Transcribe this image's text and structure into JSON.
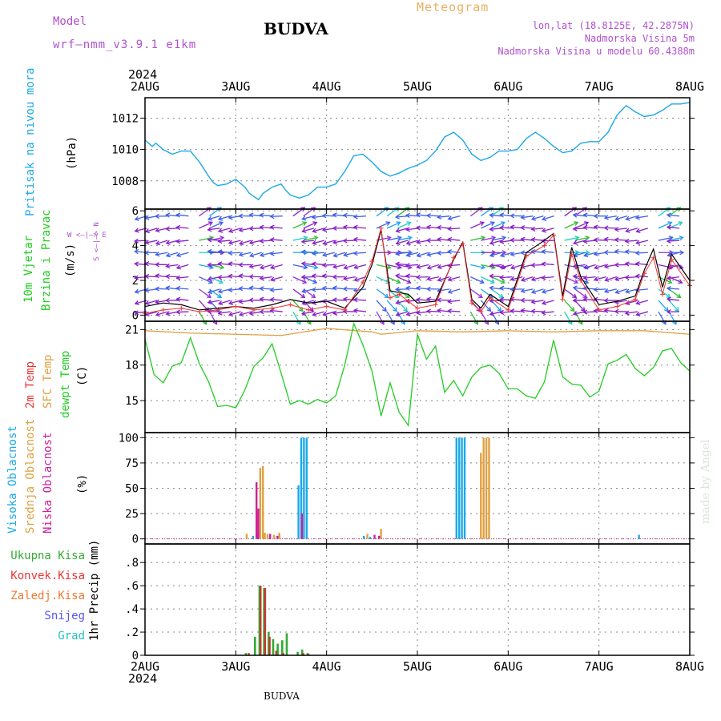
{
  "header": {
    "model_label": "Model",
    "model_name": "wrf—nmm_v3.9.1  e1km",
    "station_title": "BUDVA",
    "meteogram_label": "Meteogram",
    "lonlat": "lon,lat (18.8125E, 42.2875N)",
    "altitude": "Nadmorska Visina 5m",
    "model_altitude": "Nadmorska Visina u modelu 60.4388m"
  },
  "footer": {
    "station": "BUDVA",
    "credit": "made by Angel"
  },
  "time_axis": {
    "year": "2024",
    "ticks": [
      "2AUG",
      "3AUG",
      "4AUG",
      "5AUG",
      "6AUG",
      "7AUG",
      "8AUG"
    ],
    "range_days": [
      0,
      6
    ]
  },
  "panel_labels": {
    "pressure": {
      "name": "Pritisak na nivou mora",
      "unit": "(hPa)"
    },
    "wind": {
      "name1": "10m Vjetar",
      "name2": "Brzina i Pravac",
      "unit": "(m/s)",
      "compass": "W <—|—> E",
      "compass_v": "S <—|—> N"
    },
    "temp": {
      "t2m": "2m Temp",
      "sfc": "SFC Temp",
      "dew": "dewpt Temp",
      "unit": "(C)"
    },
    "cloud": {
      "high": "Visoka Oblacnost",
      "mid": "Srednja Oblacnost",
      "low": "Niska Oblacnost",
      "unit": "(%)"
    },
    "precip": {
      "total": "Ukupna Kisa",
      "conv": "Konvek.Kisa",
      "frz": "Zaledj.Kisa",
      "snow": "Snijeg",
      "hail": "Grad",
      "unit": "1hr Precip (mm)"
    }
  },
  "colors": {
    "pressure": "#1ba8e8",
    "wind_speed": "#000000",
    "wind_gust": "#ee3333",
    "sfc_temp": "#e0a040",
    "dew_temp": "#22cc22",
    "t2m": "#ee3333",
    "high_cloud": "#1ba8e8",
    "mid_cloud": "#e0a040",
    "low_cloud": "#d0209a",
    "precip_total": "#33aa33",
    "precip_conv": "#cc3333",
    "grid": "#888888"
  },
  "chart_data": [
    {
      "type": "line",
      "name": "pressure",
      "ylim": [
        1006.2,
        1013.3
      ],
      "yticks": [
        1008,
        1010,
        1012
      ],
      "x": [
        0,
        0.08,
        0.12,
        0.2,
        0.3,
        0.4,
        0.5,
        0.6,
        0.7,
        0.75,
        0.8,
        0.9,
        1.0,
        1.1,
        1.15,
        1.25,
        1.3,
        1.4,
        1.5,
        1.55,
        1.6,
        1.7,
        1.8,
        1.9,
        2.0,
        2.1,
        2.2,
        2.3,
        2.4,
        2.5,
        2.6,
        2.7,
        2.8,
        2.9,
        3.0,
        3.1,
        3.2,
        3.3,
        3.4,
        3.5,
        3.6,
        3.7,
        3.8,
        3.9,
        4.0,
        4.1,
        4.2,
        4.3,
        4.4,
        4.5,
        4.6,
        4.7,
        4.8,
        4.9,
        5.0,
        5.1,
        5.2,
        5.3,
        5.4,
        5.5,
        5.6,
        5.7,
        5.8,
        5.9,
        6.0
      ],
      "values": [
        1010.6,
        1010.2,
        1010.4,
        1010.0,
        1009.7,
        1009.9,
        1009.9,
        1009.2,
        1008.3,
        1007.9,
        1007.7,
        1007.8,
        1008.1,
        1007.6,
        1007.2,
        1006.8,
        1007.2,
        1007.6,
        1007.8,
        1007.4,
        1007.1,
        1006.9,
        1007.1,
        1007.6,
        1007.6,
        1007.8,
        1008.6,
        1009.6,
        1009.7,
        1009.2,
        1008.6,
        1008.3,
        1008.5,
        1008.8,
        1009.0,
        1009.3,
        1009.9,
        1010.8,
        1011.1,
        1010.6,
        1009.7,
        1009.3,
        1009.5,
        1009.9,
        1009.9,
        1010.0,
        1010.7,
        1011.1,
        1010.7,
        1010.2,
        1009.8,
        1009.9,
        1010.4,
        1010.5,
        1010.5,
        1011.1,
        1012.2,
        1012.8,
        1012.4,
        1012.1,
        1012.2,
        1012.5,
        1012.9,
        1012.9,
        1013.0
      ]
    },
    {
      "type": "line",
      "name": "wind",
      "ylim": [
        -0.35,
        6.1
      ],
      "yticks": [
        0,
        2,
        4,
        6
      ],
      "x": [
        0,
        0.2,
        0.4,
        0.6,
        0.8,
        1.0,
        1.2,
        1.4,
        1.6,
        1.8,
        2.0,
        2.2,
        2.4,
        2.5,
        2.6,
        2.7,
        2.8,
        2.9,
        3.0,
        3.2,
        3.4,
        3.5,
        3.6,
        3.7,
        3.8,
        4.0,
        4.2,
        4.4,
        4.5,
        4.6,
        4.7,
        4.8,
        5.0,
        5.2,
        5.4,
        5.5,
        5.6,
        5.7,
        5.8,
        6.0
      ],
      "speed": [
        0.5,
        0.7,
        0.6,
        0.3,
        0.4,
        0.5,
        0.4,
        0.6,
        0.9,
        0.7,
        0.8,
        0.4,
        1.6,
        2.9,
        4.9,
        1.4,
        1.3,
        1.2,
        0.7,
        0.8,
        3.2,
        4.2,
        0.9,
        0.4,
        1.2,
        0.5,
        3.6,
        4.3,
        4.7,
        1.1,
        3.9,
        2.2,
        0.6,
        0.8,
        1.1,
        2.6,
        3.8,
        1.6,
        3.5,
        2.0
      ],
      "gust": [
        0.1,
        0.3,
        0.4,
        0.2,
        0.3,
        0.5,
        0.3,
        0.4,
        0.6,
        0.3,
        0.5,
        0.3,
        1.9,
        3.1,
        5.0,
        1.0,
        1.2,
        0.8,
        0.4,
        0.6,
        3.3,
        4.1,
        0.7,
        0.2,
        1.0,
        0.3,
        3.4,
        4.0,
        4.6,
        0.9,
        3.5,
        2.0,
        0.3,
        0.5,
        0.9,
        2.4,
        3.3,
        1.2,
        3.2,
        1.7
      ]
    },
    {
      "type": "line",
      "name": "temperature",
      "ylim": [
        12.3,
        21.7
      ],
      "yticks": [
        15,
        18,
        21
      ],
      "x_sfc": [
        0,
        0.5,
        1.0,
        1.5,
        2.0,
        2.5,
        2.6,
        3.0,
        3.5,
        4.0,
        4.5,
        5.0,
        5.5,
        6.0
      ],
      "sfc": [
        20.9,
        20.7,
        20.6,
        20.5,
        21.1,
        20.8,
        20.6,
        20.9,
        20.8,
        20.9,
        20.8,
        20.9,
        20.9,
        20.6
      ],
      "x_dew": [
        0,
        0.1,
        0.2,
        0.3,
        0.4,
        0.5,
        0.6,
        0.7,
        0.8,
        0.9,
        1.0,
        1.1,
        1.2,
        1.3,
        1.4,
        1.5,
        1.6,
        1.7,
        1.8,
        1.9,
        2.0,
        2.1,
        2.2,
        2.3,
        2.4,
        2.5,
        2.6,
        2.7,
        2.8,
        2.9,
        3.0,
        3.1,
        3.2,
        3.3,
        3.4,
        3.5,
        3.6,
        3.7,
        3.8,
        3.9,
        4.0,
        4.1,
        4.2,
        4.3,
        4.4,
        4.5,
        4.6,
        4.7,
        4.8,
        4.9,
        5.0,
        5.1,
        5.2,
        5.3,
        5.4,
        5.5,
        5.6,
        5.7,
        5.8,
        5.9,
        6.0
      ],
      "dew": [
        20.2,
        17.2,
        16.5,
        17.9,
        18.2,
        20.3,
        18.1,
        16.6,
        14.5,
        14.6,
        14.4,
        15.9,
        17.9,
        18.6,
        19.8,
        17.3,
        14.7,
        15.0,
        14.7,
        15.1,
        14.8,
        15.4,
        18.0,
        21.5,
        19.7,
        17.5,
        13.7,
        16.5,
        14.0,
        12.9,
        20.6,
        18.5,
        19.6,
        15.7,
        16.7,
        15.4,
        17.0,
        17.8,
        18.0,
        17.3,
        16.0,
        16.0,
        15.4,
        15.2,
        16.6,
        20.1,
        17.0,
        16.4,
        16.3,
        15.3,
        15.8,
        18.1,
        18.4,
        18.9,
        17.7,
        17.1,
        17.8,
        19.2,
        19.4,
        18.2,
        17.5
      ]
    },
    {
      "type": "bar",
      "name": "cloud_cover",
      "ylim": [
        -5,
        105
      ],
      "yticks": [
        0,
        25,
        50,
        75,
        100
      ],
      "high": {
        "x": [
          1.18,
          1.23,
          1.68,
          1.71,
          1.74,
          1.77,
          2.4,
          2.47,
          3.42,
          3.45,
          3.48,
          3.51,
          5.43
        ],
        "values": [
          3,
          5,
          53,
          100,
          100,
          100,
          3,
          2,
          100,
          100,
          100,
          100,
          4
        ]
      },
      "mid": {
        "x": [
          1.1,
          1.25,
          1.28,
          1.3,
          1.33,
          1.4,
          1.46,
          2.43,
          2.58,
          3.68,
          3.71,
          3.74,
          3.77
        ],
        "values": [
          5,
          70,
          72,
          6,
          5,
          4,
          6,
          5,
          10,
          85,
          100,
          100,
          100
        ]
      },
      "low": {
        "x": [
          1.2,
          1.22,
          1.35,
          1.43,
          1.7,
          2.5,
          2.55
        ],
        "values": [
          56,
          30,
          5,
          3,
          25,
          4,
          3
        ]
      }
    },
    {
      "type": "bar",
      "name": "precipitation",
      "ylim": [
        0,
        0.96
      ],
      "yticks": [
        0,
        0.2,
        0.4,
        0.6,
        0.8
      ],
      "total": {
        "x": [
          1.1,
          1.15,
          1.2,
          1.25,
          1.3,
          1.35,
          1.4,
          1.45,
          1.5,
          1.55,
          1.62,
          1.67,
          1.72,
          1.78,
          1.85
        ],
        "values": [
          0.02,
          0.0,
          0.16,
          0.6,
          0.58,
          0.2,
          0.14,
          0.1,
          0.13,
          0.19,
          0.0,
          0.03,
          0.05,
          0.02,
          0.0
        ]
      },
      "conv": {
        "x": [
          1.12,
          1.25,
          1.3,
          1.35,
          1.42,
          1.5,
          1.72,
          1.78
        ],
        "values": [
          0.02,
          0.6,
          0.58,
          0.16,
          0.04,
          0.02,
          0.02,
          0.01
        ]
      }
    }
  ]
}
